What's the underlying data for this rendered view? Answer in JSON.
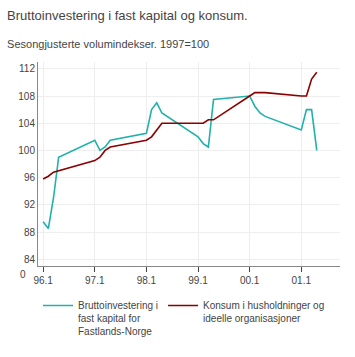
{
  "chart_data": {
    "type": "line",
    "title": "Bruttoinvestering i fast kapital og konsum.",
    "subtitle": "Sesongjusterte volumindekser. 1997=100",
    "x": [
      96.1,
      96.2,
      96.3,
      96.4,
      97.1,
      97.2,
      97.3,
      97.4,
      98.1,
      98.2,
      98.3,
      98.4,
      99.1,
      99.2,
      99.3,
      99.4,
      100.1,
      100.2,
      100.3,
      100.4,
      101.1,
      101.2,
      101.3,
      101.4
    ],
    "series": [
      {
        "name": "Bruttoinvestering i\nfast kapital for\nFastlands-Norge",
        "color": "#20b2aa",
        "values": [
          89.5,
          88.5,
          93.0,
          99.0,
          101.5,
          100.0,
          100.5,
          101.5,
          102.5,
          106.0,
          107.0,
          105.5,
          102.0,
          101.0,
          100.5,
          107.5,
          108.0,
          106.5,
          105.5,
          105.0,
          103.0,
          106.0,
          106.0,
          100.0
        ]
      },
      {
        "name": "Konsum i husholdninger og\nideelle organisasjoner",
        "color": "#8b0000",
        "values": [
          95.8,
          96.2,
          96.8,
          97.0,
          98.5,
          99.0,
          100.0,
          100.5,
          101.5,
          102.0,
          103.0,
          104.0,
          104.0,
          104.0,
          104.5,
          104.5,
          108.0,
          108.5,
          108.5,
          108.5,
          108.0,
          108.0,
          110.5,
          111.5
        ]
      }
    ],
    "xlim": [
      96.0,
      101.85
    ],
    "xticks": [
      96.1,
      97.1,
      98.1,
      99.1,
      {
        "value": 100.1,
        "label": "00.1"
      },
      {
        "value": 101.1,
        "label": "01.1"
      }
    ],
    "ylim": [
      83,
      113
    ],
    "yticks": [
      84,
      88,
      92,
      96,
      100,
      104,
      108,
      112
    ],
    "grid": true,
    "legend": "bottom",
    "annotations": [
      "0"
    ]
  }
}
